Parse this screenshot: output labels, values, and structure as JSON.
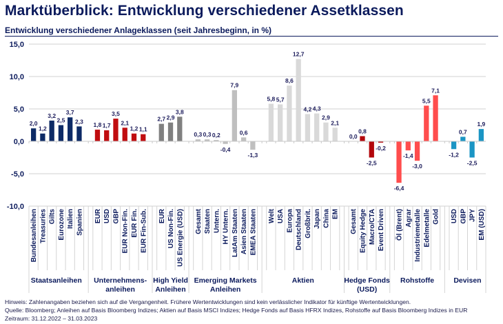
{
  "header": {
    "title": "Marktüberblick: Entwicklung verschiedener Assetklassen",
    "subtitle": "Entwicklung verschiedener Anlageklassen (seit Jahresbeginn, in %)"
  },
  "footer": {
    "note": "Hinweis: Zahlenangaben beziehen sich auf die Vergangenheit. Frühere Wertentwicklungen sind kein verlässlicher Indikator für künftige Wertentwicklungen.",
    "source": "Quelle: Bloomberg; Anleihen auf Basis Bloomberg Indizes; Aktien auf Basis MSCI Indizes; Hedge Fonds auf Basis HFRX Indizes, Rohstoffe auf Basis Bloomberg Indizes in EUR",
    "period": "Zeitraum: 31.12.2022 – 31.03.2023"
  },
  "chart_data": {
    "type": "bar",
    "title": "Entwicklung verschiedener Anlageklassen (seit Jahresbeginn, in %)",
    "xlabel": "",
    "ylabel": "",
    "ylim": [
      -10,
      15
    ],
    "yticks": [
      -10,
      -5,
      0,
      5,
      10,
      15
    ],
    "ytick_labels": [
      "-10,0",
      "-5,0",
      "0,0",
      "5,0",
      "10,0",
      "15,0"
    ],
    "grid": true,
    "legend": "none",
    "decimal_separator": ",",
    "groups": [
      {
        "name": "Staatsanleihen",
        "label_lines": [
          "Staatsanleihen"
        ],
        "color": "#0d2a66",
        "categories": [
          "Bundesanleihen",
          "Treasuries",
          "Gilts",
          "Eurozone",
          "Italien",
          "Spanien"
        ],
        "values": [
          2.0,
          1.2,
          3.2,
          2.5,
          3.7,
          2.3
        ]
      },
      {
        "name": "Unternehmensanleihen",
        "label_lines": [
          "Unternehmens-",
          "anleihen"
        ],
        "color": "#c00d10",
        "categories": [
          "EUR",
          "USD",
          "GBP",
          "EUR Non-Fin.",
          "EUR Fin.",
          "EUR Fin-Sub."
        ],
        "values": [
          1.8,
          1.7,
          3.5,
          2.1,
          1.2,
          1.1
        ]
      },
      {
        "name": "High Yield Anleihen",
        "label_lines": [
          "High Yield",
          "Anleihen"
        ],
        "color": "#808080",
        "categories": [
          "EUR",
          "US Non-Fin.",
          "US Energie (USD)"
        ],
        "values": [
          2.7,
          2.9,
          3.8
        ]
      },
      {
        "name": "Emerging Markets Anleihen",
        "label_lines": [
          "Emerging Markets",
          "Anleihen"
        ],
        "color": "#bfbfbf",
        "categories": [
          "Gesamt",
          "Staaten",
          "Untern.",
          "HY Untern.",
          "LatAm Staaten",
          "Asien Staaten",
          "EMEA Staaten"
        ],
        "values": [
          0.3,
          0.3,
          0.2,
          -0.4,
          7.9,
          0.6,
          -1.3
        ]
      },
      {
        "name": "Aktien",
        "label_lines": [
          "Aktien"
        ],
        "color": "#d9d9d9",
        "categories": [
          "Welt",
          "USA",
          "Europa",
          "Deutschland",
          "Großbrit.",
          "Japan",
          "China",
          "EM"
        ],
        "values": [
          5.8,
          5.7,
          8.6,
          12.7,
          4.2,
          4.3,
          2.9,
          2.1
        ]
      },
      {
        "name": "Hedge Fonds (USD)",
        "label_lines": [
          "Hedge Fonds",
          "(USD)"
        ],
        "color": "#b3070c",
        "categories": [
          "Gesamt",
          "Equity Hedge",
          "Macro/CTA",
          "Event Driven"
        ],
        "values": [
          0.0,
          0.8,
          -2.5,
          -0.2
        ]
      },
      {
        "name": "Rohstoffe",
        "label_lines": [
          "Rohstoffe"
        ],
        "color": "#ff4d4d",
        "categories": [
          "Öl (Brent)",
          "Agrar",
          "Industriemetalle",
          "Edelmetalle",
          "Gold"
        ],
        "values": [
          -6.4,
          -1.4,
          -3.0,
          5.5,
          7.1
        ]
      },
      {
        "name": "Devisen",
        "label_lines": [
          "Devisen"
        ],
        "color": "#1b95c4",
        "categories": [
          "USD",
          "GBP",
          "JPY",
          "EM (USD)"
        ],
        "values": [
          -1.2,
          0.7,
          -2.5,
          1.9
        ]
      }
    ]
  }
}
